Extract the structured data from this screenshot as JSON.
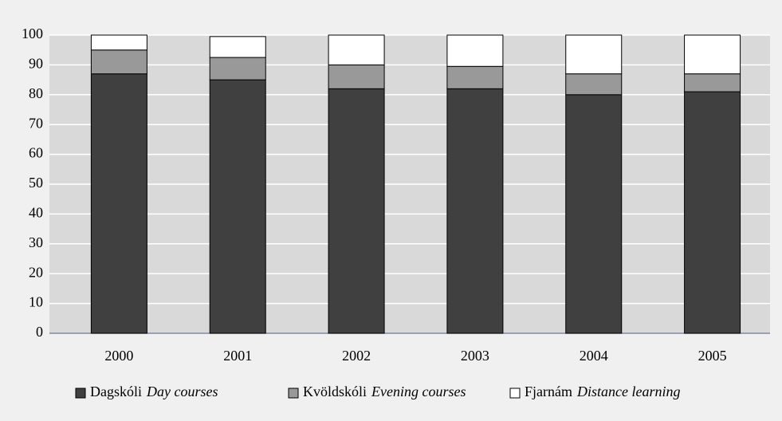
{
  "chart_data": {
    "type": "stacked_bar",
    "categories": [
      "2000",
      "2001",
      "2002",
      "2003",
      "2004",
      "2005"
    ],
    "series": [
      {
        "name": "Dagskóli",
        "name_en": "Day courses",
        "color": "#404040",
        "values": [
          87,
          85,
          82,
          82,
          80,
          81
        ]
      },
      {
        "name": "Kvöldskóli",
        "name_en": "Evening courses",
        "color": "#999999",
        "values": [
          8,
          7.5,
          8,
          7.5,
          7,
          6
        ]
      },
      {
        "name": "Fjarnám",
        "name_en": "Distance learning",
        "color": "#ffffff",
        "values": [
          5,
          7,
          10,
          10.5,
          13,
          13
        ]
      }
    ],
    "ylim": [
      0,
      100
    ],
    "yticks": [
      0,
      10,
      20,
      30,
      40,
      50,
      60,
      70,
      80,
      90,
      100
    ],
    "grid": true,
    "legend": "bottom"
  }
}
